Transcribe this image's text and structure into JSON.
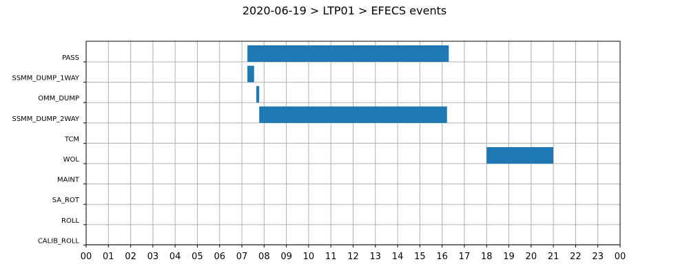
{
  "chart_data": {
    "type": "bar",
    "orientation": "horizontal-timeline",
    "title": "2020-06-19 > LTP01 > EFECS events",
    "xlabel": "",
    "ylabel": "",
    "x_unit": "hour",
    "xlim": [
      0,
      24
    ],
    "x_tick_labels": [
      "00",
      "01",
      "02",
      "03",
      "04",
      "05",
      "06",
      "07",
      "08",
      "09",
      "10",
      "11",
      "12",
      "13",
      "14",
      "15",
      "16",
      "17",
      "18",
      "19",
      "20",
      "21",
      "22",
      "23",
      "00"
    ],
    "categories": [
      "PASS",
      "SSMM_DUMP_1WAY",
      "OMM_DUMP",
      "SSMM_DUMP_2WAY",
      "TCM",
      "WOL",
      "MAINT",
      "SA_ROT",
      "ROLL",
      "CALIB_ROLL"
    ],
    "grid": true,
    "bar_color": "#1f77b4",
    "events": [
      {
        "category": "PASS",
        "start": 7.25,
        "end": 16.3
      },
      {
        "category": "SSMM_DUMP_1WAY",
        "start": 7.25,
        "end": 7.55
      },
      {
        "category": "OMM_DUMP",
        "start": 7.65,
        "end": 7.78
      },
      {
        "category": "SSMM_DUMP_2WAY",
        "start": 7.78,
        "end": 16.22
      },
      {
        "category": "WOL",
        "start": 18.0,
        "end": 21.0
      }
    ]
  }
}
